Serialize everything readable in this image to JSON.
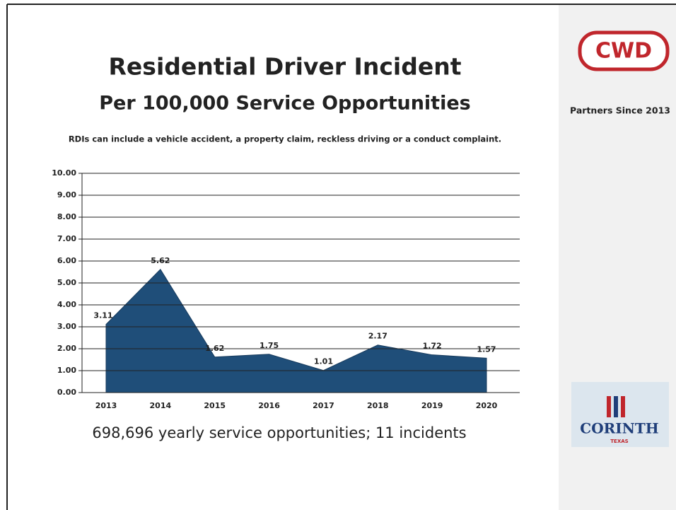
{
  "chart_data": {
    "type": "area",
    "title": "Residential Driver Incident",
    "subtitle": "Per 100,000 Service Opportunities",
    "note": "RDIs can include a vehicle accident, a property claim, reckless driving or a conduct complaint.",
    "caption": "698,696 yearly service opportunities; 11 incidents",
    "categories": [
      "2013",
      "2014",
      "2015",
      "2016",
      "2017",
      "2018",
      "2019",
      "2020"
    ],
    "values": [
      3.11,
      5.62,
      1.62,
      1.75,
      1.01,
      2.17,
      1.72,
      1.57
    ],
    "color": "#1f4e79",
    "ylim": [
      0,
      10
    ],
    "yticks": [
      {
        "value": 0,
        "label": "0.00"
      },
      {
        "value": 1,
        "label": "1.00"
      },
      {
        "value": 2,
        "label": "2.00"
      },
      {
        "value": 3,
        "label": "3.00"
      },
      {
        "value": 4,
        "label": "4.00"
      },
      {
        "value": 5,
        "label": "5.00"
      },
      {
        "value": 6,
        "label": "6.00"
      },
      {
        "value": 7,
        "label": "7.00"
      },
      {
        "value": 8,
        "label": "8.00"
      },
      {
        "value": 9,
        "label": "9.00"
      },
      {
        "value": 10,
        "label": "10.00"
      }
    ],
    "grid": true
  },
  "sidebar": {
    "logo_top": "CWD",
    "tagline": "Partners Since 2013",
    "logo_bottom": "CORINTH",
    "logo_bottom_sub": "TEXAS"
  }
}
